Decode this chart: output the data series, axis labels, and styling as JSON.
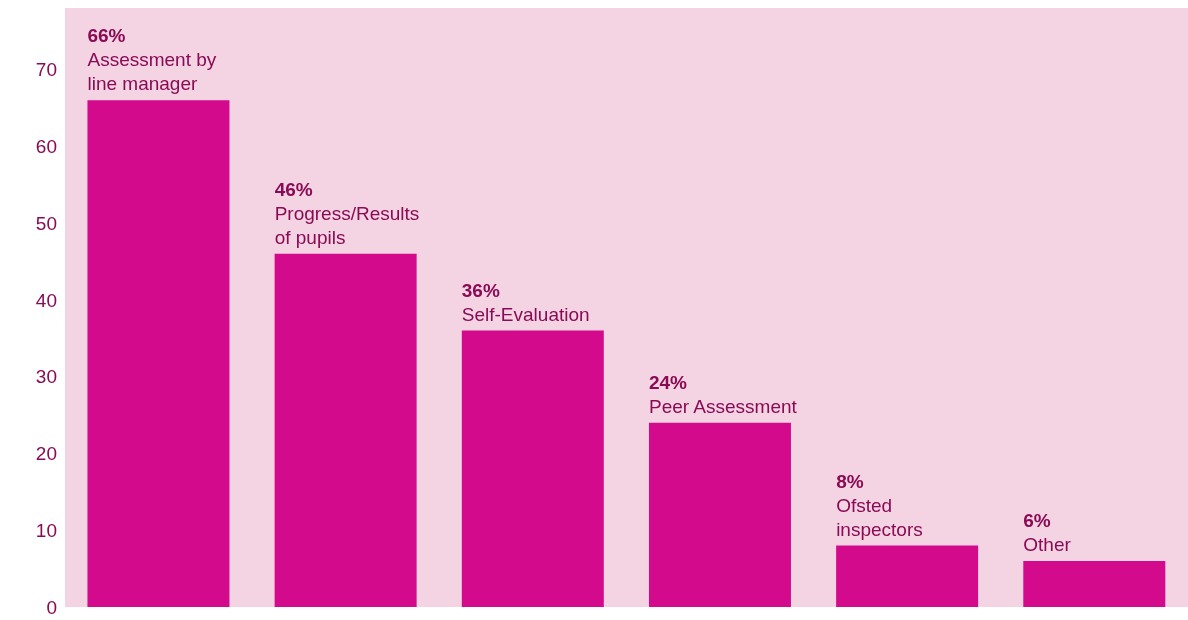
{
  "chart_data": {
    "type": "bar",
    "categories": [
      "Assessment by line manager",
      "Progress/Results of pupils",
      "Self-Evaluation",
      "Peer Assessment",
      "Ofsted inspectors",
      "Other"
    ],
    "values": [
      66,
      46,
      36,
      24,
      8,
      6
    ],
    "value_labels": [
      "66%",
      "46%",
      "36%",
      "24%",
      "8%",
      "6%"
    ],
    "color": "#d40a8c",
    "ylim": [
      0,
      78
    ],
    "yticks": [
      0,
      10,
      20,
      30,
      40,
      50,
      60,
      70
    ],
    "grid": false,
    "tick_labels": "y"
  }
}
